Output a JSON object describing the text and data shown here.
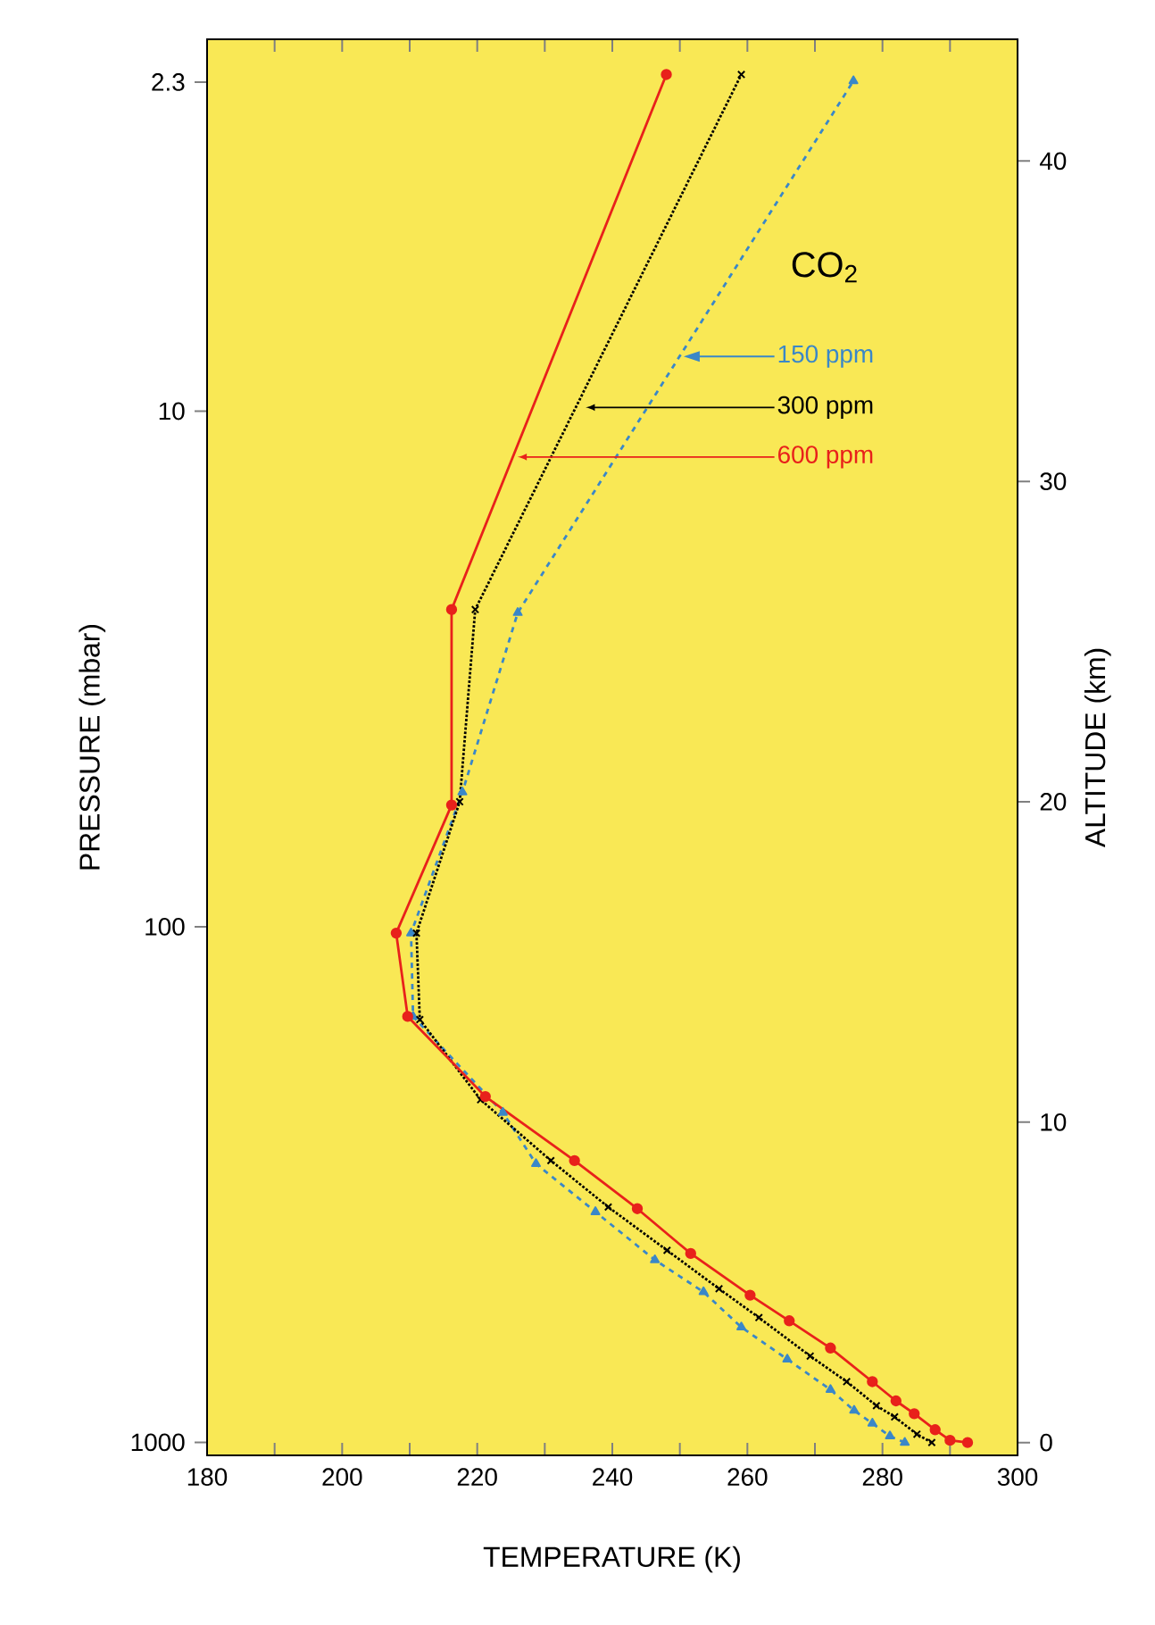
{
  "chart_data": {
    "type": "line",
    "xlabel": "TEMPERATURE (K)",
    "ylabel": "PRESSURE (mbar)",
    "y2label": "ALTITUDE (km)",
    "legend_title": "CO$_{2}$",
    "xlim": [
      180,
      300
    ],
    "xticks": [
      180,
      {
        "value": 190,
        "label": null
      },
      200,
      {
        "value": 210,
        "label": null
      },
      220,
      {
        "value": 230,
        "label": null
      },
      240,
      {
        "value": 250,
        "label": null
      },
      260,
      {
        "value": 270,
        "label": null
      },
      280,
      {
        "value": 290,
        "label": null
      },
      300
    ],
    "log": "y",
    "ylim": [
      1060,
      1.9
    ],
    "yticks": [
      1000,
      100,
      10,
      2.3
    ],
    "y2lim": [
      -0.4,
      43.8
    ],
    "y2ticks": [
      0,
      10,
      20,
      30,
      40
    ],
    "series": [
      {
        "name": "150 ppm",
        "color": "#3a87c8",
        "axis": "y2",
        "marker": "triangle",
        "line_style": "dashed",
        "x": [
          283.3,
          281.1,
          278.5,
          275.8,
          272.3,
          265.9,
          259.1,
          253.5,
          246.3,
          237.5,
          228.7,
          223.8,
          210.5,
          210.2,
          217.8,
          226,
          275.7
        ],
        "values": [
          0,
          0.2,
          0.6,
          1.0,
          1.65,
          2.6,
          3.6,
          4.7,
          5.7,
          7.2,
          8.7,
          10.3,
          13.3,
          15.9,
          20.3,
          25.9,
          42.5
        ]
      },
      {
        "name": "300 ppm",
        "color": "#000000",
        "axis": "y2",
        "marker": "cross",
        "line_style": "dotted",
        "x": [
          287.3,
          285.1,
          281.8,
          279.1,
          274.7,
          269.3,
          261.7,
          255.8,
          248.1,
          239.4,
          230.9,
          220.5,
          211.5,
          211,
          217.4,
          219.7,
          259.1
        ],
        "values": [
          0,
          0.26,
          0.8,
          1.15,
          1.9,
          2.7,
          3.9,
          4.8,
          6.0,
          7.35,
          8.8,
          10.7,
          13.2,
          15.9,
          20.0,
          26.0,
          42.7
        ]
      },
      {
        "name": "600 ppm",
        "color": "#e8211b",
        "axis": "y2",
        "marker": "circle",
        "line_style": "solid",
        "x": [
          292.6,
          290,
          287.8,
          284.7,
          282,
          278.5,
          272.3,
          266.2,
          260.4,
          251.6,
          243.7,
          234.4,
          221.2,
          209.7,
          208,
          216.2,
          216.2,
          248
        ],
        "values": [
          0,
          0.07,
          0.4,
          0.9,
          1.3,
          1.9,
          2.95,
          3.8,
          4.6,
          5.9,
          7.3,
          8.8,
          10.8,
          13.3,
          15.9,
          19.9,
          26.0,
          42.7
        ]
      }
    ]
  }
}
